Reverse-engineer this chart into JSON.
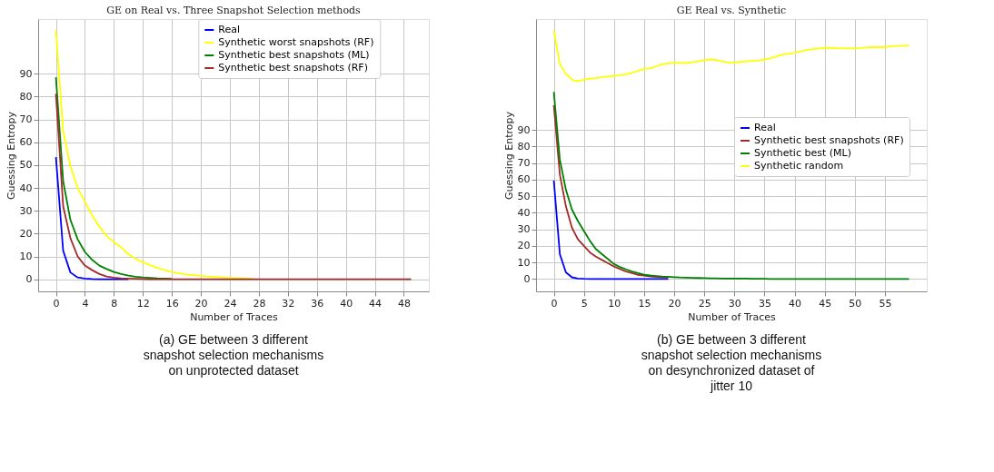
{
  "chart_data": [
    {
      "type": "line",
      "title": "GE on Real vs. Three Snapshot Selection methods",
      "xlabel": "Number of Traces",
      "ylabel": "Guessing Entropy",
      "x": [
        0,
        1,
        2,
        3,
        4,
        5,
        6,
        7,
        8,
        9,
        10,
        11,
        12,
        13,
        14,
        15,
        16,
        17,
        18,
        19,
        20,
        21,
        22,
        23,
        24,
        25,
        26,
        27,
        28,
        29,
        30,
        31,
        32,
        33,
        34,
        35,
        36,
        37,
        38,
        39,
        40,
        41,
        42,
        43,
        44,
        45,
        46,
        47,
        48,
        49
      ],
      "series": [
        {
          "name": "Real",
          "color": "#0000ff",
          "values": [
            53.5,
            12.5,
            3,
            0.8,
            0.3,
            0.1,
            0,
            0,
            0,
            0,
            0,
            null,
            null,
            null,
            null,
            null,
            null,
            null,
            null,
            null,
            null,
            null,
            null,
            null,
            null,
            null,
            null,
            null,
            null,
            null,
            null,
            null,
            null,
            null,
            null,
            null,
            null,
            null,
            null,
            null,
            null,
            null,
            null,
            null,
            null,
            null,
            null,
            null,
            null,
            null
          ]
        },
        {
          "name": "Synthetic worst snapshots (RF)",
          "color": "#ffff00",
          "values": [
            109,
            65,
            49.5,
            40,
            34,
            28,
            23,
            19,
            16.3,
            14,
            11,
            9,
            7.5,
            6.2,
            5,
            4,
            3.2,
            2.6,
            2.1,
            1.8,
            1.5,
            1.2,
            1,
            0.8,
            0.6,
            0.5,
            0.4,
            0.3,
            null,
            null,
            null,
            null,
            null,
            null,
            null,
            null,
            null,
            null,
            null,
            null,
            null,
            null,
            null,
            null,
            null,
            null,
            null,
            null,
            null,
            null
          ]
        },
        {
          "name": "Synthetic best snapshots (ML)",
          "color": "#008000",
          "values": [
            88.5,
            43,
            26,
            17.5,
            12,
            8.5,
            6,
            4.5,
            3.2,
            2.3,
            1.6,
            1.1,
            0.8,
            0.6,
            0.4,
            0.3,
            0.2,
            null,
            null,
            null,
            null,
            null,
            null,
            null,
            null,
            null,
            null,
            null,
            null,
            null,
            null,
            null,
            null,
            null,
            null,
            null,
            null,
            null,
            null,
            null,
            null,
            null,
            null,
            null,
            null,
            null,
            null,
            null,
            null,
            null
          ]
        },
        {
          "name": "Synthetic best snapshots (RF)",
          "color": "#a52a2a",
          "values": [
            81.3,
            32,
            18,
            10,
            6,
            4,
            2.3,
            1.2,
            0.7,
            0.4,
            0.3,
            0.2,
            0.1,
            0,
            0,
            0,
            0,
            0,
            0,
            0,
            0,
            0,
            0,
            0,
            0,
            0,
            0,
            0,
            0,
            0,
            0,
            0,
            0,
            0,
            0,
            0,
            0,
            0,
            0,
            0,
            0,
            0,
            0,
            0,
            0,
            0,
            0,
            0,
            0,
            0
          ]
        }
      ],
      "xlim": [
        -2.45,
        51.45
      ],
      "ylim": [
        -5.3,
        114
      ],
      "xticks": [
        0,
        4,
        8,
        12,
        16,
        20,
        24,
        28,
        32,
        36,
        40,
        44,
        48
      ],
      "yticks": [
        0,
        10,
        20,
        30,
        40,
        50,
        60,
        70,
        80,
        90
      ],
      "grid": true,
      "legend": "top right",
      "annotations": [
        "(a) GE between 3 different snapshot selection mechanisms on unprotected dataset"
      ]
    },
    {
      "type": "line",
      "title": "GE Real vs. Synthetic",
      "xlabel": "Number of Traces",
      "ylabel": "Guessing Entropy",
      "x": [
        0,
        1,
        2,
        3,
        4,
        5,
        6,
        7,
        8,
        9,
        10,
        11,
        12,
        13,
        14,
        15,
        16,
        17,
        18,
        19,
        20,
        21,
        22,
        23,
        24,
        25,
        26,
        27,
        28,
        29,
        30,
        31,
        32,
        33,
        34,
        35,
        36,
        37,
        38,
        39,
        40,
        41,
        42,
        43,
        44,
        45,
        46,
        47,
        48,
        49,
        50,
        51,
        52,
        53,
        54,
        55,
        56,
        57,
        58,
        59
      ],
      "series": [
        {
          "name": "Real",
          "color": "#0000ff",
          "values": [
            59.5,
            15,
            4,
            1,
            0.3,
            0.1,
            0,
            0,
            0,
            0,
            0,
            0,
            0,
            0,
            0,
            0,
            0,
            0,
            0,
            0,
            null,
            null,
            null,
            null,
            null,
            null,
            null,
            null,
            null,
            null,
            null,
            null,
            null,
            null,
            null,
            null,
            null,
            null,
            null,
            null,
            null,
            null,
            null,
            null,
            null,
            null,
            null,
            null,
            null,
            null,
            null,
            null,
            null,
            null,
            null,
            null,
            null,
            null,
            null,
            null
          ]
        },
        {
          "name": "Synthetic best snapshots (RF)",
          "color": "#a52a2a",
          "values": [
            105,
            63,
            44,
            31,
            24,
            20,
            16,
            13.5,
            11.5,
            9.5,
            7.5,
            6,
            4.5,
            3.5,
            2.5,
            2,
            1.5,
            1.2,
            1,
            0.8,
            null,
            null,
            null,
            null,
            null,
            null,
            null,
            null,
            null,
            null,
            null,
            null,
            null,
            null,
            null,
            null,
            null,
            null,
            null,
            null,
            null,
            null,
            null,
            null,
            null,
            null,
            null,
            null,
            null,
            null,
            null,
            null,
            null,
            null,
            null,
            null,
            null,
            null,
            null,
            null
          ]
        },
        {
          "name": "Synthetic best (ML)",
          "color": "#008000",
          "values": [
            113,
            72,
            54,
            42,
            35,
            29,
            23,
            18,
            15,
            12,
            9,
            7.2,
            5.8,
            4.5,
            3.5,
            2.6,
            2.1,
            1.8,
            1.5,
            1.3,
            1.1,
            0.9,
            0.8,
            0.7,
            0.6,
            0.5,
            0.4,
            0.4,
            0.3,
            0.3,
            0.2,
            0.2,
            0.2,
            0.1,
            0.1,
            0.1,
            0,
            0,
            0,
            0,
            0,
            0,
            0,
            0,
            0,
            0,
            0,
            0,
            0,
            0,
            0,
            0,
            0,
            0,
            0,
            0,
            0,
            0,
            0,
            0
          ]
        },
        {
          "name": "Synthetic random",
          "color": "#ffff00",
          "values": [
            150.2,
            129.8,
            124,
            120.3,
            119.5,
            120.3,
            121,
            121.3,
            122,
            122.3,
            122.6,
            123.1,
            123.6,
            124.6,
            125.7,
            126.9,
            127.2,
            128.5,
            129.8,
            130.2,
            130.6,
            130.5,
            130.4,
            130.9,
            131.4,
            132.2,
            132.6,
            132.2,
            131.4,
            130.8,
            130.8,
            131.1,
            131.4,
            131.7,
            132,
            132.6,
            133.4,
            134.4,
            135.5,
            136.1,
            136.6,
            137.4,
            138.3,
            138.8,
            139.2,
            139.6,
            139.6,
            139.4,
            139.2,
            139.2,
            139.2,
            139.5,
            139.9,
            140,
            140,
            140,
            140.6,
            140.8,
            140.9,
            141
          ]
        }
      ],
      "xlim": [
        -2.95,
        61.95
      ],
      "ylim": [
        -7.5,
        157
      ],
      "xticks": [
        0,
        5,
        10,
        15,
        20,
        25,
        30,
        35,
        40,
        45,
        50,
        55
      ],
      "yticks": [
        0,
        10,
        20,
        30,
        40,
        50,
        60,
        70,
        80,
        90
      ],
      "grid": true,
      "legend": "right",
      "annotations": [
        "(b) GE between 3 different snapshot selection mechanisms on desynchronized dataset of jitter 10"
      ]
    }
  ]
}
